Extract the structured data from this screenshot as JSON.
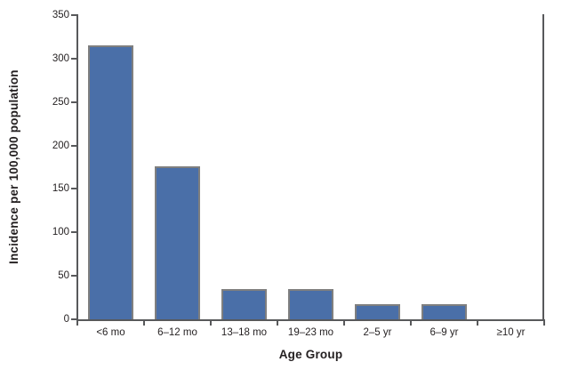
{
  "chart_data": {
    "type": "bar",
    "title": "",
    "categories": [
      "<6 mo",
      "6–12 mo",
      "13–18 mo",
      "19–23 mo",
      "2–5 yr",
      "6–9 yr",
      "≥10 yr"
    ],
    "values": [
      315,
      176,
      35,
      35,
      17,
      17,
      0
    ],
    "xlabel": "Age Group",
    "ylabel": "Incidence per 100,000 population",
    "ylim": [
      0,
      350
    ],
    "yticks": [
      0,
      50,
      100,
      150,
      200,
      250,
      300,
      350
    ],
    "grid": false,
    "legend_position": "none",
    "bar_fill_color": "#4a6fa8",
    "bar_border_color": "#7f7f7f",
    "axis_color": "#58595b",
    "text_color": "#231f20"
  }
}
